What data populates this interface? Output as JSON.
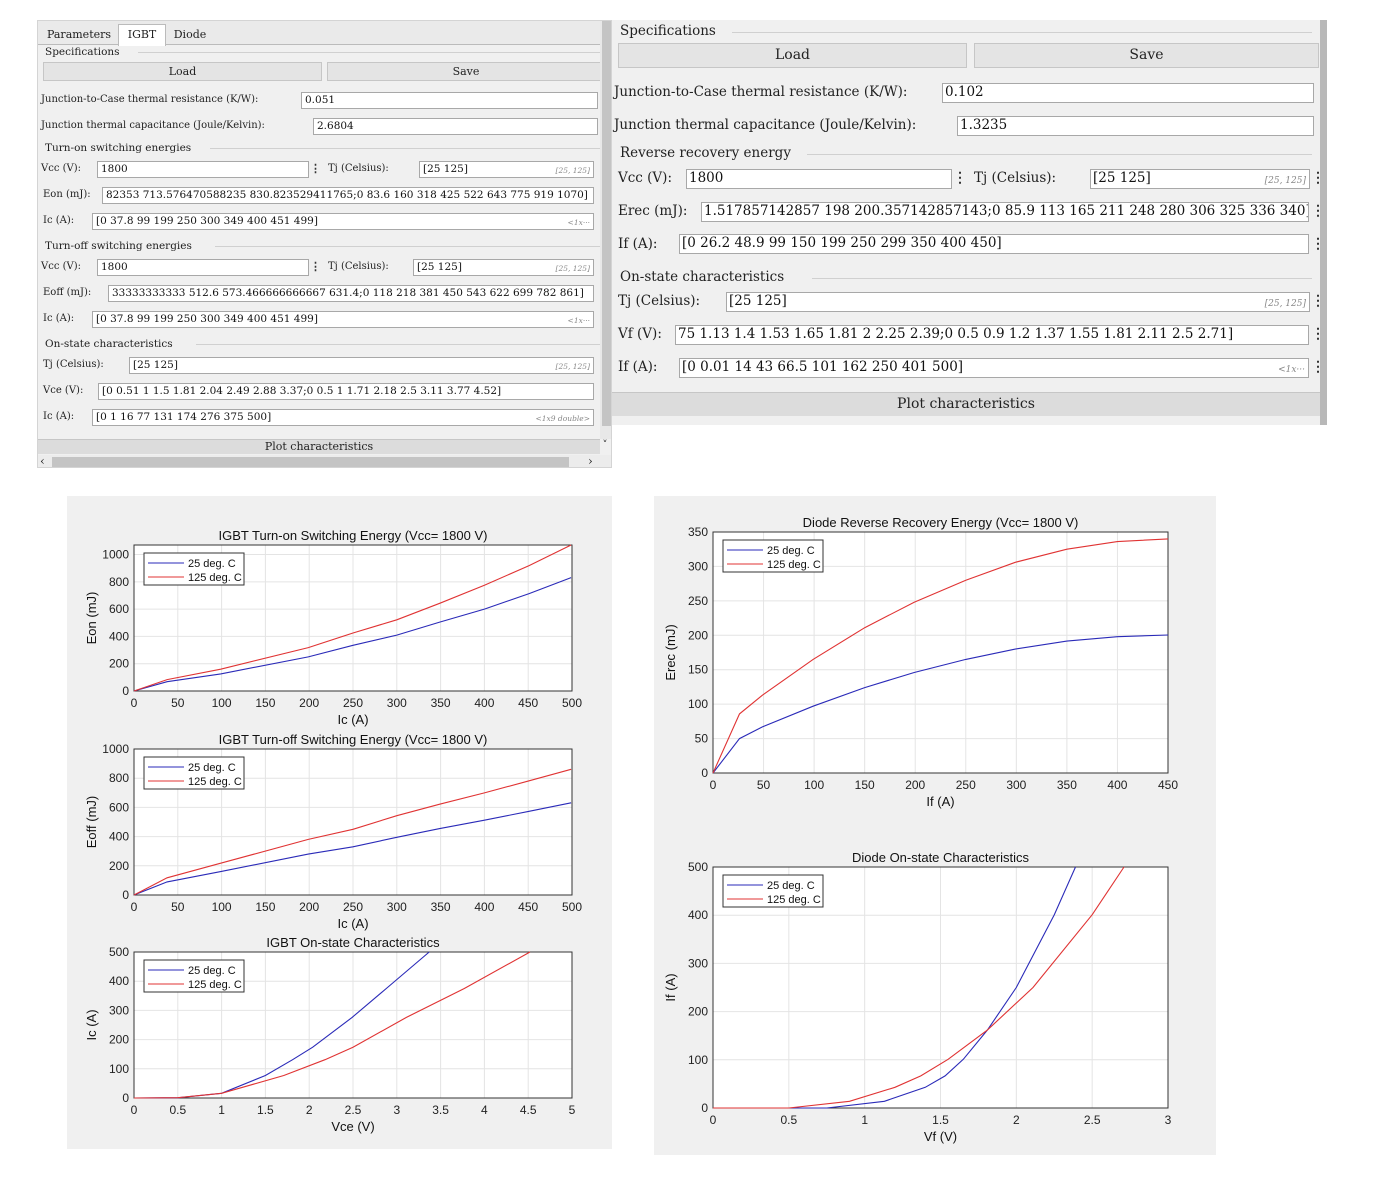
{
  "left_panel": {
    "tabs": [
      "Parameters",
      "IGBT",
      "Diode"
    ],
    "specifications": "Specifications",
    "load": "Load",
    "save": "Save",
    "rth_label": "Junction-to-Case thermal resistance (K/W):",
    "rth_value": "0.051",
    "cth_label": "Junction thermal capacitance (Joule/Kelvin):",
    "cth_value": "2.6804",
    "turn_on": {
      "title": "Turn-on switching energies",
      "vcc_label": "Vcc (V):",
      "vcc_value": "1800",
      "tj_label": "Tj (Celsius):",
      "tj_value": "[25 125]",
      "tj_hint": "[25, 125]",
      "e_label": "Eon (mJ):",
      "e_value": "82353 713.576470588235 830.823529411765;0 83.6 160 318 425 522 643 775 919 1070]",
      "ic_label": "Ic (A):",
      "ic_value": "[0 37.8 99 199 250 300 349 400 451 499]",
      "ic_hint": "<1x···"
    },
    "turn_off": {
      "title": "Turn-off switching energies",
      "vcc_label": "Vcc (V):",
      "vcc_value": "1800",
      "tj_label": "Tj (Celsius):",
      "tj_value": "[25 125]",
      "tj_hint": "[25, 125]",
      "e_label": "Eoff (mJ):",
      "e_value": "33333333333 512.6 573.466666666667 631.4;0 118 218 381 450 543 622 699 782 861]",
      "ic_label": "Ic (A):",
      "ic_value": "[0 37.8 99 199 250 300 349 400 451 499]",
      "ic_hint": "<1x···"
    },
    "on_state": {
      "title": "On-state characteristics",
      "tj_label": "Tj (Celsius):",
      "tj_value": "[25 125]",
      "tj_hint": "[25, 125]",
      "v_label": "Vce (V):",
      "v_value": "[0 0.51 1 1.5 1.81 2.04 2.49 2.88 3.37;0 0.5 1 1.71 2.18 2.5 3.11 3.77 4.52]",
      "i_label": "Ic (A):",
      "i_value": "[0 1 16 77 131 174 276 375 500]",
      "i_hint": "<1x9 double>"
    },
    "plot_button": "Plot characteristics",
    "dots": "⋮",
    "chev_down": "˅",
    "chev_left": "‹",
    "chev_right": "›"
  },
  "right_panel": {
    "specifications": "Specifications",
    "load": "Load",
    "save": "Save",
    "rth_label": "Junction-to-Case thermal resistance (K/W):",
    "rth_value": "0.102",
    "cth_label": "Junction thermal capacitance (Joule/Kelvin):",
    "cth_value": "1.3235",
    "rr": {
      "title": "Reverse recovery energy",
      "vcc_label": "Vcc (V):",
      "vcc_value": "1800",
      "tj_label": "Tj (Celsius):",
      "tj_value": "[25 125]",
      "tj_hint": "[25, 125]",
      "e_label": "Erec (mJ):",
      "e_value": "1.517857142857 198 200.357142857143;0 85.9 113 165 211 248 280 306 325 336 340]",
      "if_label": "If (A):",
      "if_value": "[0 26.2 48.9 99 150 199 250 299 350 400 450]"
    },
    "on_state": {
      "title": "On-state characteristics",
      "tj_label": "Tj (Celsius):",
      "tj_value": "[25 125]",
      "tj_hint": "[25, 125]",
      "v_label": "Vf (V):",
      "v_value": "75 1.13 1.4 1.53 1.65 1.81 2 2.25 2.39;0 0.5 0.9 1.2 1.37 1.55 1.81 2.11 2.5 2.71]",
      "i_label": "If (A):",
      "i_value": "[0 0.01 14 43 66.5 101 162 250 401 500]",
      "i_hint": "<1x···"
    },
    "plot_button": "Plot characteristics",
    "dots": "⋮"
  },
  "legend_colors": {
    "t25": "#2a2ab8",
    "t125": "#e03333"
  },
  "chart_data": [
    {
      "type": "line",
      "title": "IGBT Turn-on Switching Energy (Vcc= 1800 V)",
      "xlabel": "Ic (A)",
      "ylabel": "Eon (mJ)",
      "xlim": [
        0,
        500
      ],
      "ylim": [
        0,
        1070
      ],
      "xticks": [
        0,
        50,
        100,
        150,
        200,
        250,
        300,
        350,
        400,
        450,
        500
      ],
      "yticks": [
        0,
        200,
        400,
        600,
        800,
        1000
      ],
      "grid": true,
      "legend": "top-left",
      "series": [
        {
          "name": "25 deg. C",
          "x": [
            0,
            37.8,
            99,
            199,
            250,
            300,
            349,
            400,
            451,
            499
          ],
          "y": [
            0,
            68,
            125,
            250,
            335,
            410,
            505,
            600,
            713.6,
            830.8
          ]
        },
        {
          "name": "125 deg. C",
          "x": [
            0,
            37.8,
            99,
            199,
            250,
            300,
            349,
            400,
            451,
            499
          ],
          "y": [
            0,
            83.6,
            160,
            318,
            425,
            522,
            643,
            775,
            919,
            1070
          ]
        }
      ]
    },
    {
      "type": "line",
      "title": "IGBT Turn-off Switching Energy (Vcc= 1800 V)",
      "xlabel": "Ic (A)",
      "ylabel": "Eoff (mJ)",
      "xlim": [
        0,
        500
      ],
      "ylim": [
        0,
        1000
      ],
      "xticks": [
        0,
        50,
        100,
        150,
        200,
        250,
        300,
        350,
        400,
        450,
        500
      ],
      "yticks": [
        0,
        200,
        400,
        600,
        800,
        1000
      ],
      "grid": true,
      "legend": "top-left",
      "series": [
        {
          "name": "25 deg. C",
          "x": [
            0,
            37.8,
            99,
            199,
            250,
            300,
            349,
            400,
            451,
            499
          ],
          "y": [
            0,
            90,
            160,
            280,
            330,
            395,
            455,
            512.6,
            573.5,
            631.4
          ]
        },
        {
          "name": "125 deg. C",
          "x": [
            0,
            37.8,
            99,
            199,
            250,
            300,
            349,
            400,
            451,
            499
          ],
          "y": [
            0,
            118,
            218,
            381,
            450,
            543,
            622,
            699,
            782,
            861
          ]
        }
      ]
    },
    {
      "type": "line",
      "title": "IGBT On-state Characteristics",
      "xlabel": "Vce (V)",
      "ylabel": "Ic (A)",
      "xlim": [
        0,
        5
      ],
      "ylim": [
        0,
        500
      ],
      "xticks": [
        0,
        0.5,
        1,
        1.5,
        2,
        2.5,
        3,
        3.5,
        4,
        4.5,
        5
      ],
      "yticks": [
        0,
        100,
        200,
        300,
        400,
        500
      ],
      "grid": true,
      "legend": "top-left",
      "series": [
        {
          "name": "25 deg. C",
          "x": [
            0,
            0.51,
            1,
            1.5,
            1.81,
            2.04,
            2.49,
            2.88,
            3.37
          ],
          "y": [
            0,
            1,
            16,
            77,
            131,
            174,
            276,
            375,
            500
          ]
        },
        {
          "name": "125 deg. C",
          "x": [
            0,
            0.5,
            1,
            1.71,
            2.18,
            2.5,
            3.11,
            3.77,
            4.52
          ],
          "y": [
            0,
            1,
            16,
            77,
            131,
            174,
            276,
            375,
            500
          ]
        }
      ]
    },
    {
      "type": "line",
      "title": "Diode Reverse Recovery Energy (Vcc= 1800 V)",
      "xlabel": "If (A)",
      "ylabel": "Erec (mJ)",
      "xlim": [
        0,
        450
      ],
      "ylim": [
        0,
        350
      ],
      "xticks": [
        0,
        50,
        100,
        150,
        200,
        250,
        300,
        350,
        400,
        450
      ],
      "yticks": [
        0,
        50,
        100,
        150,
        200,
        250,
        300,
        350
      ],
      "grid": true,
      "legend": "top-left",
      "series": [
        {
          "name": "25 deg. C",
          "x": [
            0,
            26.2,
            48.9,
            99,
            150,
            199,
            250,
            299,
            350,
            400,
            450
          ],
          "y": [
            0,
            50,
            67,
            97,
            124,
            146,
            165,
            180,
            191.5,
            198,
            200.4
          ]
        },
        {
          "name": "125 deg. C",
          "x": [
            0,
            26.2,
            48.9,
            99,
            150,
            199,
            250,
            299,
            350,
            400,
            450
          ],
          "y": [
            0,
            85.9,
            113,
            165,
            211,
            248,
            280,
            306,
            325,
            336,
            340
          ]
        }
      ]
    },
    {
      "type": "line",
      "title": "Diode On-state Characteristics",
      "xlabel": "Vf (V)",
      "ylabel": "If (A)",
      "xlim": [
        0,
        3
      ],
      "ylim": [
        0,
        500
      ],
      "xticks": [
        0,
        0.5,
        1,
        1.5,
        2,
        2.5,
        3
      ],
      "yticks": [
        0,
        100,
        200,
        300,
        400,
        500
      ],
      "grid": true,
      "legend": "top-left",
      "series": [
        {
          "name": "25 deg. C",
          "x": [
            0,
            0.75,
            1.13,
            1.4,
            1.53,
            1.65,
            1.81,
            2,
            2.25,
            2.39
          ],
          "y": [
            0,
            0.01,
            14,
            43,
            66.5,
            101,
            162,
            250,
            401,
            500
          ]
        },
        {
          "name": "125 deg. C",
          "x": [
            0,
            0.5,
            0.9,
            1.2,
            1.37,
            1.55,
            1.81,
            2.11,
            2.5,
            2.71
          ],
          "y": [
            0,
            0.01,
            14,
            43,
            66.5,
            101,
            162,
            250,
            401,
            500
          ]
        }
      ]
    }
  ]
}
